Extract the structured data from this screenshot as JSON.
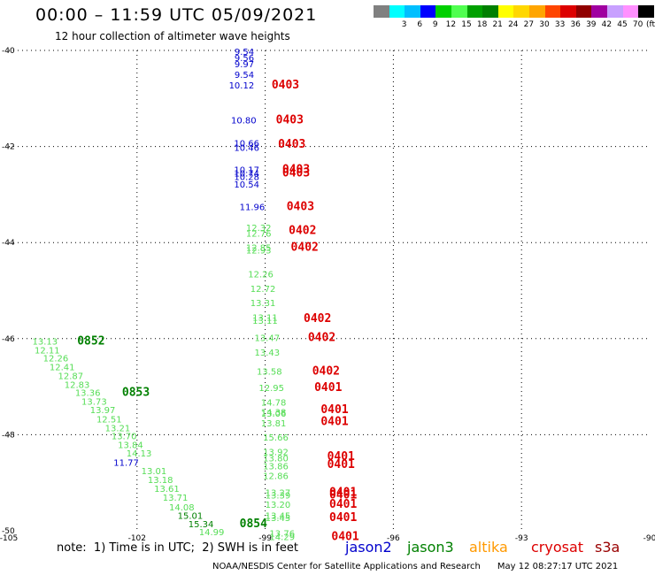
{
  "header": {
    "title": "00:00 – 11:59 UTC 05/09/2021",
    "subtitle": "12 hour collection of altimeter wave heights"
  },
  "legend": {
    "unit": "(ft)",
    "swatches": [
      {
        "color": "#808080",
        "label": ""
      },
      {
        "color": "#00ffff",
        "label": "3"
      },
      {
        "color": "#00bfff",
        "label": "6"
      },
      {
        "color": "#0000ff",
        "label": "9"
      },
      {
        "color": "#00d000",
        "label": "12"
      },
      {
        "color": "#50ff50",
        "label": "15"
      },
      {
        "color": "#00a000",
        "label": "18"
      },
      {
        "color": "#008000",
        "label": "21"
      },
      {
        "color": "#ffff00",
        "label": "24"
      },
      {
        "color": "#ffd700",
        "label": "27"
      },
      {
        "color": "#ffa500",
        "label": "30"
      },
      {
        "color": "#ff4500",
        "label": "33"
      },
      {
        "color": "#dd0000",
        "label": "36"
      },
      {
        "color": "#900000",
        "label": "39"
      },
      {
        "color": "#a000a0",
        "label": "42"
      },
      {
        "color": "#c8a0ff",
        "label": "45"
      },
      {
        "color": "#ff90ff",
        "label": "70"
      },
      {
        "color": "#000000",
        "label": ""
      }
    ]
  },
  "note": "note:  1) Time is in UTC;  2) SWH is in feet",
  "satellites": [
    {
      "name": "jason2",
      "color": "#0000cc"
    },
    {
      "name": "jason3",
      "color": "#008000"
    },
    {
      "name": "altika",
      "color": "#ff9900"
    },
    {
      "name": "cryosat",
      "color": "#dd0000"
    },
    {
      "name": "s3a",
      "color": "#990000"
    }
  ],
  "footer": "NOAA/NESDIS Center for Satellite Applications and Research      May 12 08:27:17 UTC 2021",
  "chart_data": {
    "type": "scatter",
    "xlim": [
      -105,
      -90
    ],
    "ylim": [
      -50,
      -40
    ],
    "x_ticks": [
      "-105",
      "-102",
      "-99",
      "-96",
      "-93",
      "-90"
    ],
    "y_ticks": [
      "-40",
      "-42",
      "-44",
      "-46",
      "-48",
      "-50"
    ],
    "grid": true,
    "annotations": [
      {
        "lon": -99.72,
        "lat": -40.02,
        "text": "9.54",
        "c": "#0000cc"
      },
      {
        "lon": -99.72,
        "lat": -40.15,
        "text": "9.56",
        "c": "#0000cc"
      },
      {
        "lon": -99.72,
        "lat": -40.28,
        "text": "9.97",
        "c": "#0000cc"
      },
      {
        "lon": -99.72,
        "lat": -40.5,
        "text": "9.54",
        "c": "#0000cc"
      },
      {
        "lon": -99.85,
        "lat": -40.72,
        "text": "10.12",
        "c": "#0000cc"
      },
      {
        "lon": -98.85,
        "lat": -40.72,
        "text": "0403",
        "c": "#dd0000",
        "big": true
      },
      {
        "lon": -99.8,
        "lat": -41.45,
        "text": "10.80",
        "c": "#0000cc"
      },
      {
        "lon": -98.75,
        "lat": -41.45,
        "text": "0403",
        "c": "#dd0000",
        "big": true
      },
      {
        "lon": -99.73,
        "lat": -41.92,
        "text": "10.66",
        "c": "#0000cc"
      },
      {
        "lon": -99.73,
        "lat": -42.02,
        "text": "10.46",
        "c": "#0000cc"
      },
      {
        "lon": -98.7,
        "lat": -41.95,
        "text": "0403",
        "c": "#dd0000",
        "big": true
      },
      {
        "lon": -99.73,
        "lat": -42.48,
        "text": "10.17",
        "c": "#0000cc"
      },
      {
        "lon": -99.73,
        "lat": -42.55,
        "text": "10.74",
        "c": "#0000cc"
      },
      {
        "lon": -99.73,
        "lat": -42.62,
        "text": "10.28",
        "c": "#0000cc"
      },
      {
        "lon": -99.73,
        "lat": -42.78,
        "text": "10.54",
        "c": "#0000cc"
      },
      {
        "lon": -98.6,
        "lat": -42.48,
        "text": "0403",
        "c": "#dd0000",
        "big": true
      },
      {
        "lon": -98.6,
        "lat": -42.55,
        "text": "0403",
        "c": "#dd0000",
        "big": true
      },
      {
        "lon": -99.6,
        "lat": -43.25,
        "text": "11.96",
        "c": "#0000cc"
      },
      {
        "lon": -98.5,
        "lat": -43.25,
        "text": "0403",
        "c": "#dd0000",
        "big": true
      },
      {
        "lon": -99.45,
        "lat": -43.68,
        "text": "12.32",
        "c": "#55dd55"
      },
      {
        "lon": -99.45,
        "lat": -43.8,
        "text": "12.76",
        "c": "#55dd55"
      },
      {
        "lon": -98.45,
        "lat": -43.75,
        "text": "0402",
        "c": "#dd0000",
        "big": true
      },
      {
        "lon": -99.45,
        "lat": -44.1,
        "text": "12.85",
        "c": "#55dd55"
      },
      {
        "lon": -99.45,
        "lat": -44.15,
        "text": "12.93",
        "c": "#55dd55"
      },
      {
        "lon": -98.4,
        "lat": -44.1,
        "text": "0402",
        "c": "#dd0000",
        "big": true
      },
      {
        "lon": -99.4,
        "lat": -44.65,
        "text": "12.26",
        "c": "#55dd55"
      },
      {
        "lon": -99.35,
        "lat": -44.95,
        "text": "12.72",
        "c": "#55dd55"
      },
      {
        "lon": -99.35,
        "lat": -45.25,
        "text": "13.31",
        "c": "#55dd55"
      },
      {
        "lon": -99.3,
        "lat": -45.55,
        "text": "13.11",
        "c": "#55dd55"
      },
      {
        "lon": -99.3,
        "lat": -45.62,
        "text": "13.11",
        "c": "#55dd55"
      },
      {
        "lon": -98.1,
        "lat": -45.58,
        "text": "0402",
        "c": "#dd0000",
        "big": true
      },
      {
        "lon": -99.25,
        "lat": -45.98,
        "text": "13.47",
        "c": "#55dd55"
      },
      {
        "lon": -98.0,
        "lat": -45.98,
        "text": "0402",
        "c": "#dd0000",
        "big": true
      },
      {
        "lon": -99.25,
        "lat": -46.28,
        "text": "13.43",
        "c": "#55dd55"
      },
      {
        "lon": -99.2,
        "lat": -46.68,
        "text": "13.58",
        "c": "#55dd55"
      },
      {
        "lon": -97.9,
        "lat": -46.68,
        "text": "0402",
        "c": "#dd0000",
        "big": true
      },
      {
        "lon": -99.15,
        "lat": -47.02,
        "text": "12.95",
        "c": "#55dd55"
      },
      {
        "lon": -97.85,
        "lat": -47.02,
        "text": "0401",
        "c": "#dd0000",
        "big": true
      },
      {
        "lon": -99.1,
        "lat": -47.32,
        "text": "14.78",
        "c": "#55dd55"
      },
      {
        "lon": -99.1,
        "lat": -47.52,
        "text": "14.38",
        "c": "#55dd55"
      },
      {
        "lon": -99.1,
        "lat": -47.55,
        "text": "13.06",
        "c": "#55dd55"
      },
      {
        "lon": -99.1,
        "lat": -47.75,
        "text": "13.81",
        "c": "#55dd55"
      },
      {
        "lon": -97.7,
        "lat": -47.48,
        "text": "0401",
        "c": "#dd0000",
        "big": true
      },
      {
        "lon": -97.7,
        "lat": -47.73,
        "text": "0401",
        "c": "#dd0000",
        "big": true
      },
      {
        "lon": -99.05,
        "lat": -48.05,
        "text": "15.66",
        "c": "#55dd55"
      },
      {
        "lon": -99.05,
        "lat": -48.35,
        "text": "13.92",
        "c": "#55dd55"
      },
      {
        "lon": -99.05,
        "lat": -48.48,
        "text": "13.80",
        "c": "#55dd55"
      },
      {
        "lon": -99.05,
        "lat": -48.65,
        "text": "13.86",
        "c": "#55dd55"
      },
      {
        "lon": -99.05,
        "lat": -48.85,
        "text": "12.86",
        "c": "#55dd55"
      },
      {
        "lon": -97.55,
        "lat": -48.45,
        "text": "0401",
        "c": "#dd0000",
        "big": true
      },
      {
        "lon": -97.55,
        "lat": -48.62,
        "text": "0401",
        "c": "#dd0000",
        "big": true
      },
      {
        "lon": -99.0,
        "lat": -49.2,
        "text": "13.27",
        "c": "#55dd55"
      },
      {
        "lon": -99.0,
        "lat": -49.25,
        "text": "13.39",
        "c": "#55dd55"
      },
      {
        "lon": -99.0,
        "lat": -49.45,
        "text": "13.20",
        "c": "#55dd55"
      },
      {
        "lon": -99.0,
        "lat": -49.68,
        "text": "13.45",
        "c": "#55dd55"
      },
      {
        "lon": -99.0,
        "lat": -49.72,
        "text": "13.45",
        "c": "#55dd55"
      },
      {
        "lon": -97.5,
        "lat": -49.2,
        "text": "0401",
        "c": "#dd0000",
        "big": true
      },
      {
        "lon": -97.5,
        "lat": -49.25,
        "text": "0401",
        "c": "#dd0000",
        "big": true
      },
      {
        "lon": -97.5,
        "lat": -49.45,
        "text": "0401",
        "c": "#dd0000",
        "big": true
      },
      {
        "lon": -97.5,
        "lat": -49.72,
        "text": "0401",
        "c": "#dd0000",
        "big": true
      },
      {
        "lon": -98.9,
        "lat": -50.05,
        "text": "13.76",
        "c": "#55dd55"
      },
      {
        "lon": -98.9,
        "lat": -50.12,
        "text": "14.29",
        "c": "#55dd55"
      },
      {
        "lon": -97.45,
        "lat": -50.12,
        "text": "0401",
        "c": "#dd0000",
        "big": true
      },
      {
        "lon": -104.45,
        "lat": -46.05,
        "text": "13.13",
        "c": "#55dd55"
      },
      {
        "lon": -103.4,
        "lat": -46.05,
        "text": "0852",
        "c": "#008000",
        "big": true
      },
      {
        "lon": -104.4,
        "lat": -46.23,
        "text": "12.11",
        "c": "#55dd55"
      },
      {
        "lon": -104.2,
        "lat": -46.4,
        "text": "12.26",
        "c": "#55dd55"
      },
      {
        "lon": -104.05,
        "lat": -46.58,
        "text": "12.41",
        "c": "#55dd55"
      },
      {
        "lon": -103.85,
        "lat": -46.77,
        "text": "12.87",
        "c": "#55dd55"
      },
      {
        "lon": -103.7,
        "lat": -46.95,
        "text": "12.83",
        "c": "#55dd55"
      },
      {
        "lon": -103.45,
        "lat": -47.12,
        "text": "13.36",
        "c": "#55dd55"
      },
      {
        "lon": -102.35,
        "lat": -47.12,
        "text": "0853",
        "c": "#008000",
        "big": true
      },
      {
        "lon": -103.3,
        "lat": -47.3,
        "text": "13.73",
        "c": "#55dd55"
      },
      {
        "lon": -103.1,
        "lat": -47.48,
        "text": "13.97",
        "c": "#55dd55"
      },
      {
        "lon": -102.95,
        "lat": -47.67,
        "text": "12.51",
        "c": "#55dd55"
      },
      {
        "lon": -102.75,
        "lat": -47.85,
        "text": "13.21",
        "c": "#55dd55"
      },
      {
        "lon": -102.6,
        "lat": -48.02,
        "text": "13.70",
        "c": "#55dd55"
      },
      {
        "lon": -102.45,
        "lat": -48.2,
        "text": "13.84",
        "c": "#55dd55"
      },
      {
        "lon": -102.25,
        "lat": -48.38,
        "text": "14.13",
        "c": "#55dd55"
      },
      {
        "lon": -102.55,
        "lat": -48.57,
        "text": "11.77",
        "c": "#0000cc"
      },
      {
        "lon": -101.9,
        "lat": -48.75,
        "text": "13.01",
        "c": "#55dd55"
      },
      {
        "lon": -101.75,
        "lat": -48.93,
        "text": "13.18",
        "c": "#55dd55"
      },
      {
        "lon": -101.6,
        "lat": -49.12,
        "text": "13.61",
        "c": "#55dd55"
      },
      {
        "lon": -101.4,
        "lat": -49.3,
        "text": "13.71",
        "c": "#55dd55"
      },
      {
        "lon": -101.25,
        "lat": -49.5,
        "text": "14.08",
        "c": "#55dd55"
      },
      {
        "lon": -101.05,
        "lat": -49.68,
        "text": "15.01",
        "c": "#008000"
      },
      {
        "lon": -100.8,
        "lat": -49.85,
        "text": "15.34",
        "c": "#008000"
      },
      {
        "lon": -100.55,
        "lat": -50.02,
        "text": "14.99",
        "c": "#55dd55"
      },
      {
        "lon": -99.6,
        "lat": -49.85,
        "text": "0854",
        "c": "#008000",
        "big": true
      }
    ]
  }
}
